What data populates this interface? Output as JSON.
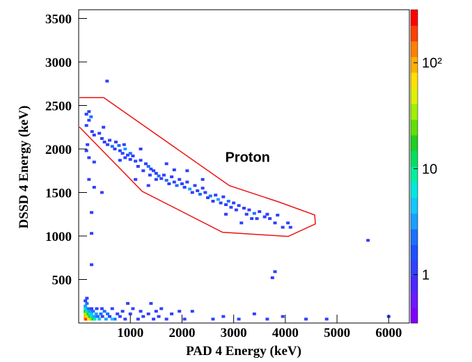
{
  "chart_data": {
    "type": "heatmap",
    "x_label": "PAD 4 Energy (keV)",
    "y_label": "DSSD 4 Energy (keV)",
    "xlim": [
      0,
      6400
    ],
    "ylim": [
      0,
      3600
    ],
    "xticks": [
      1000,
      2000,
      3000,
      4000,
      5000,
      6000
    ],
    "yticks": [
      500,
      1000,
      1500,
      2000,
      2500,
      3000,
      3500
    ],
    "zlim": [
      0.35,
      316
    ],
    "zlog": true,
    "zticks": [
      1,
      10,
      {
        "value": 100,
        "label": "10²"
      }
    ],
    "colormap": [
      "#8000ff",
      "#6a1aff",
      "#4b28ff",
      "#3040ff",
      "#1e50ff",
      "#1a70ff",
      "#18a0ff",
      "#10c8ff",
      "#00e8e0",
      "#00f0a0",
      "#00e060",
      "#20d020",
      "#60e000",
      "#a0f000",
      "#e0f000",
      "#ffe000",
      "#ffb000",
      "#ff8000",
      "#ff4000",
      "#ff0000"
    ],
    "annotation": {
      "text": "Proton",
      "x": 3270,
      "y": 1910
    },
    "cut": {
      "x": [
        14,
        486,
        2919,
        3865,
        4568,
        4581,
        4054,
        2784,
        1230,
        14
      ],
      "y": [
        2590,
        2590,
        1578,
        1393,
        1242,
        1139,
        995,
        1043,
        1513,
        2253
      ],
      "color": "#ee1111"
    },
    "x": [
      150,
      150,
      200,
      240,
      200,
      260,
      150,
      170,
      300,
      300,
      400,
      450,
      480,
      500,
      560,
      600,
      650,
      700,
      720,
      780,
      800,
      850,
      880,
      900,
      950,
      1000,
      800,
      1000,
      1050,
      1100,
      1150,
      1200,
      1250,
      1300,
      1350,
      1400,
      1380,
      1450,
      1500,
      1550,
      1600,
      1500,
      1650,
      1700,
      1750,
      1800,
      1850,
      1900,
      1950,
      2000,
      2050,
      2100,
      2150,
      2200,
      2250,
      2300,
      2350,
      2400,
      2450,
      2500,
      2550,
      2600,
      2650,
      2700,
      2750,
      2800,
      2850,
      2900,
      2950,
      3000,
      3050,
      3100,
      3200,
      3250,
      3300,
      3400,
      3450,
      3500,
      3600,
      3650,
      3700,
      3800,
      3850,
      3950,
      4050,
      4100,
      3150,
      2850,
      1850,
      2100,
      1100,
      1350,
      900,
      1700,
      450,
      300,
      200,
      1200,
      2400,
      3350,
      550,
      250,
      250,
      250,
      3800,
      3750,
      5600,
      200,
      130,
      160,
      190,
      220,
      250,
      280,
      310,
      130,
      160,
      190,
      220,
      250,
      280,
      310,
      130,
      160,
      190,
      220,
      250,
      130,
      160,
      190,
      220,
      130,
      160,
      190,
      130,
      160,
      130,
      160,
      250,
      280,
      340,
      370,
      400,
      430,
      460,
      500,
      530,
      560,
      600,
      650,
      700,
      750,
      800,
      850,
      900,
      950,
      1000,
      1050,
      1150,
      1200,
      1250,
      1350,
      1450,
      1400,
      1500,
      1550,
      1600,
      1700,
      1800,
      1950,
      2050,
      2200,
      2600,
      2800,
      3100,
      3400,
      3650,
      3950,
      4400,
      4800,
      6000,
      650,
      350,
      450
    ],
    "y": [
      2400,
      2270,
      2430,
      2370,
      2330,
      2200,
      1980,
      2050,
      1850,
      2160,
      2180,
      2120,
      2250,
      2080,
      2050,
      2100,
      2030,
      2000,
      2080,
      2040,
      1980,
      1950,
      2050,
      2000,
      1930,
      1950,
      1870,
      1880,
      1920,
      1860,
      1800,
      1870,
      1750,
      1830,
      1800,
      1770,
      1700,
      1750,
      1720,
      1690,
      1660,
      1650,
      1700,
      1640,
      1600,
      1680,
      1620,
      1580,
      1650,
      1600,
      1560,
      1620,
      1540,
      1500,
      1580,
      1520,
      1480,
      1550,
      1500,
      1440,
      1460,
      1400,
      1470,
      1420,
      1380,
      1450,
      1360,
      1400,
      1330,
      1380,
      1300,
      1350,
      1320,
      1250,
      1300,
      1260,
      1200,
      1280,
      1220,
      1250,
      1200,
      1150,
      1240,
      1100,
      1150,
      1100,
      1150,
      1250,
      1760,
      1750,
      1650,
      1580,
      1900,
      1830,
      1500,
      1560,
      1900,
      2000,
      1650,
      1200,
      2780,
      1270,
      1030,
      670,
      590,
      520,
      950,
      1650,
      45,
      45,
      45,
      45,
      45,
      45,
      45,
      75,
      75,
      75,
      75,
      75,
      75,
      75,
      105,
      105,
      105,
      105,
      105,
      135,
      135,
      135,
      135,
      165,
      165,
      165,
      195,
      225,
      255,
      285,
      165,
      135,
      105,
      75,
      45,
      105,
      75,
      135,
      45,
      105,
      75,
      165,
      45,
      105,
      75,
      135,
      45,
      225,
      105,
      165,
      45,
      135,
      75,
      105,
      45,
      225,
      135,
      75,
      165,
      45,
      105,
      135,
      45,
      135,
      45,
      75,
      45,
      105,
      45,
      75,
      45,
      45,
      75,
      45,
      165,
      165
    ],
    "z": [
      1,
      1,
      1,
      2,
      1,
      1,
      1,
      1,
      1,
      1,
      1,
      1,
      1,
      1,
      1,
      1,
      2,
      1,
      1,
      2,
      1,
      1,
      1,
      3,
      1,
      2,
      1,
      1,
      1,
      1,
      1,
      1,
      1,
      1,
      2,
      1,
      1,
      1,
      1,
      2,
      1,
      1,
      1,
      2,
      1,
      1,
      1,
      2,
      1,
      1,
      1,
      1,
      3,
      1,
      1,
      1,
      2,
      1,
      1,
      1,
      2,
      1,
      1,
      3,
      1,
      1,
      1,
      2,
      1,
      1,
      1,
      1,
      1,
      1,
      1,
      2,
      1,
      1,
      1,
      1,
      1,
      1,
      1,
      1,
      1,
      1,
      1,
      1,
      1,
      1,
      1,
      1,
      1,
      1,
      1,
      1,
      1,
      1,
      1,
      1,
      1,
      1,
      1,
      1,
      1,
      1,
      1,
      1,
      150,
      250,
      80,
      60,
      30,
      15,
      8,
      100,
      60,
      40,
      20,
      10,
      5,
      3,
      40,
      30,
      15,
      8,
      4,
      20,
      10,
      5,
      3,
      8,
      4,
      2,
      3,
      2,
      1,
      1,
      1,
      2,
      3,
      2,
      4,
      2,
      1,
      2,
      3,
      2,
      1,
      1,
      2,
      1,
      1,
      1,
      1,
      1,
      1,
      1,
      1,
      1,
      1,
      1,
      1,
      1,
      1,
      1,
      1,
      1,
      1,
      1,
      1,
      1,
      1,
      1,
      1,
      1,
      1,
      1,
      1,
      1,
      1,
      5,
      1,
      1
    ]
  }
}
